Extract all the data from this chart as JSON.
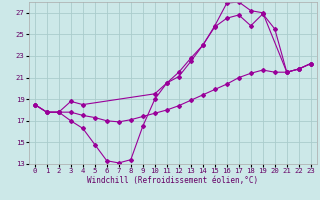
{
  "bg_color": "#cce8e8",
  "grid_color": "#aacccc",
  "line_color": "#990099",
  "xlim": [
    -0.5,
    23.5
  ],
  "ylim": [
    13,
    28
  ],
  "xticks": [
    0,
    1,
    2,
    3,
    4,
    5,
    6,
    7,
    8,
    9,
    10,
    11,
    12,
    13,
    14,
    15,
    16,
    17,
    18,
    19,
    20,
    21,
    22,
    23
  ],
  "yticks": [
    13,
    15,
    17,
    19,
    21,
    23,
    25,
    27
  ],
  "xlabel": "Windchill (Refroidissement éolien,°C)",
  "line1_x": [
    0,
    1,
    2,
    3,
    4,
    5,
    6,
    7,
    8,
    9,
    10,
    11,
    12,
    13,
    14,
    15,
    16,
    17,
    18,
    19,
    21,
    22,
    23
  ],
  "line1_y": [
    18.5,
    17.8,
    17.8,
    17.0,
    16.3,
    14.8,
    13.3,
    13.1,
    13.4,
    16.5,
    19.0,
    20.5,
    21.1,
    22.5,
    24.0,
    25.8,
    27.9,
    28.0,
    27.2,
    27.0,
    21.5,
    21.8,
    22.3
  ],
  "line2_x": [
    0,
    1,
    2,
    3,
    4,
    10,
    11,
    12,
    13,
    14,
    15,
    16,
    17,
    18,
    19,
    20,
    21,
    22,
    23
  ],
  "line2_y": [
    18.5,
    17.8,
    17.8,
    18.8,
    18.5,
    19.5,
    20.5,
    21.5,
    22.8,
    24.0,
    25.7,
    26.5,
    26.8,
    25.8,
    26.9,
    25.5,
    21.5,
    21.8,
    22.3
  ],
  "line3_x": [
    0,
    1,
    2,
    3,
    4,
    5,
    6,
    7,
    8,
    9,
    10,
    11,
    12,
    13,
    14,
    15,
    16,
    17,
    18,
    19,
    20,
    21,
    22,
    23
  ],
  "line3_y": [
    18.5,
    17.8,
    17.8,
    17.8,
    17.5,
    17.3,
    17.0,
    16.9,
    17.1,
    17.4,
    17.7,
    18.0,
    18.4,
    18.9,
    19.4,
    19.9,
    20.4,
    21.0,
    21.4,
    21.7,
    21.5,
    21.5,
    21.8,
    22.3
  ]
}
